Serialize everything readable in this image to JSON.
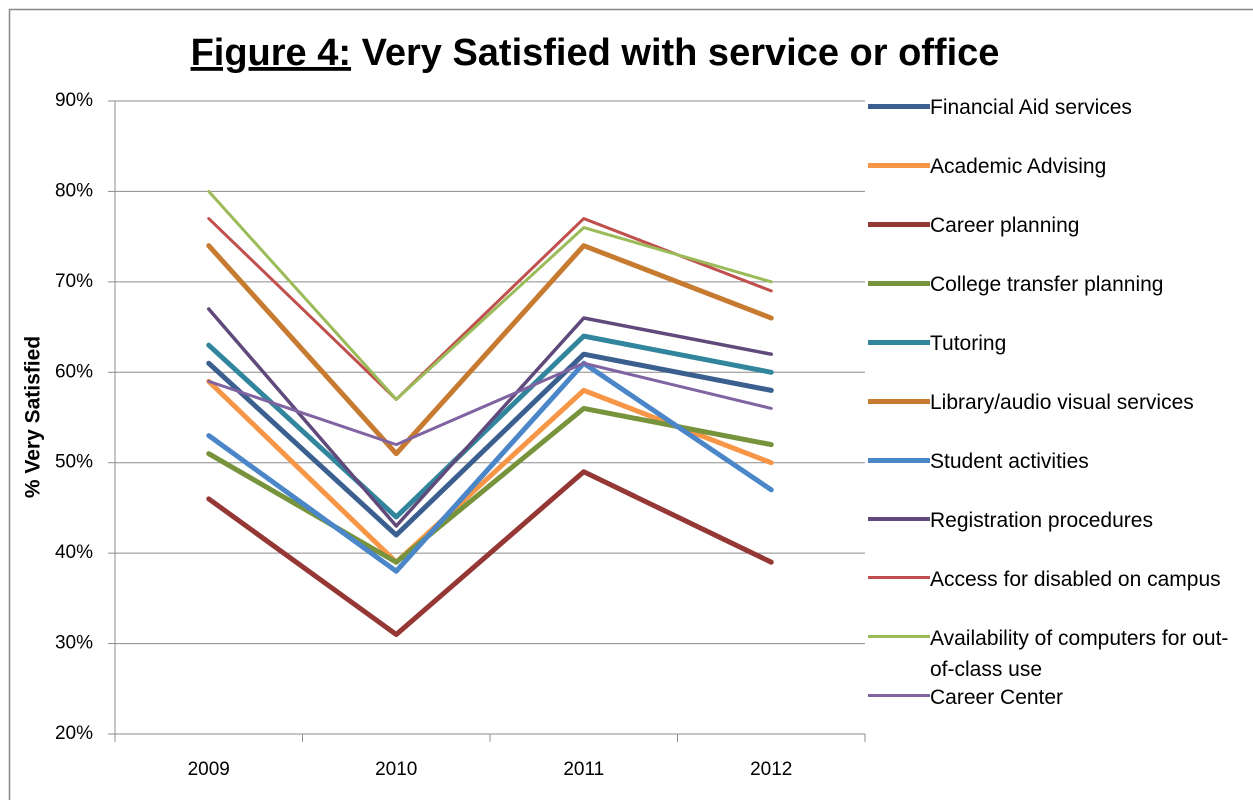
{
  "chart_data": {
    "type": "line",
    "title": [
      "Figure 4:",
      "Very Satisfied with service or office"
    ],
    "y_label": "% Very Satisfied",
    "categories": [
      "2009",
      "2010",
      "2011",
      "2012"
    ],
    "ylim": [
      20,
      90
    ],
    "yticks": [
      {
        "value": 20,
        "label": "20%"
      },
      {
        "value": 30,
        "label": "30%"
      },
      {
        "value": 40,
        "label": "40%"
      },
      {
        "value": 50,
        "label": "50%"
      },
      {
        "value": 60,
        "label": "60%"
      },
      {
        "value": 70,
        "label": "70%"
      },
      {
        "value": 80,
        "label": "80%"
      },
      {
        "value": 90,
        "label": "90%"
      }
    ],
    "grid": true,
    "legend": "right",
    "series": [
      {
        "name": "Financial Aid services",
        "color": "#3b5f8e",
        "line_width": 5,
        "values": [
          61,
          42,
          62,
          58
        ]
      },
      {
        "name": "Academic Advising",
        "color": "#f79646",
        "line_width": 5,
        "values": [
          59,
          39,
          58,
          50
        ]
      },
      {
        "name": "Career planning",
        "color": "#953735",
        "line_width": 5,
        "values": [
          46,
          31,
          49,
          39
        ]
      },
      {
        "name": "College transfer planning",
        "color": "#77933c",
        "line_width": 5,
        "values": [
          51,
          39,
          56,
          52
        ]
      },
      {
        "name": "Tutoring",
        "color": "#31859c",
        "line_width": 5,
        "values": [
          63,
          44,
          64,
          60
        ]
      },
      {
        "name": "Library/audio visual services",
        "color": "#c77b30",
        "line_width": 5,
        "values": [
          74,
          51,
          74,
          66
        ]
      },
      {
        "name": "Student activities",
        "color": "#4a86c8",
        "line_width": 5,
        "values": [
          53,
          38,
          61,
          47
        ]
      },
      {
        "name": "Registration procedures",
        "color": "#604a7b",
        "line_width": 3.5,
        "values": [
          67,
          43,
          66,
          62
        ]
      },
      {
        "name": "Access for disabled on campus",
        "color": "#c0504d",
        "line_width": 3,
        "values": [
          77,
          57,
          77,
          69
        ]
      },
      {
        "name": "Availability of computers for out-of-class use",
        "color": "#9bbb59",
        "line_width": 3,
        "values": [
          80,
          57,
          76,
          70
        ]
      },
      {
        "name": "Career Center",
        "color": "#8064a2",
        "line_width": 3,
        "values": [
          59,
          52,
          61,
          56
        ]
      }
    ]
  }
}
